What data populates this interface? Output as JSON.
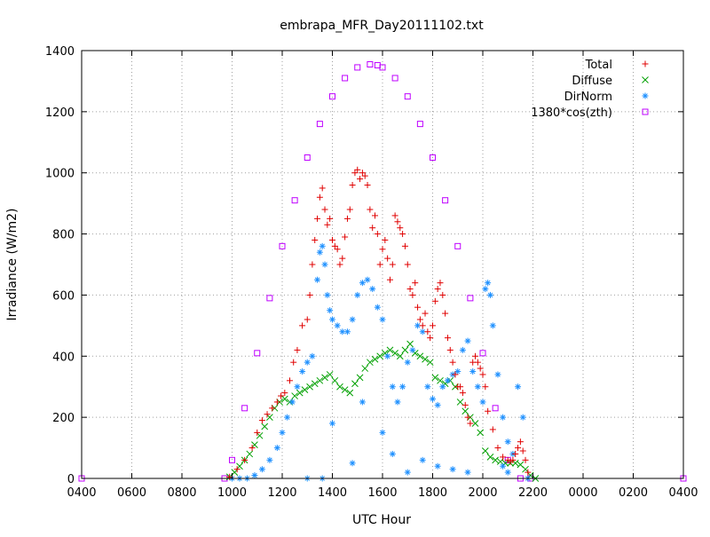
{
  "chart_data": {
    "type": "scatter",
    "title": "embrapa_MFR_Day20111102.txt",
    "xlabel": "UTC Hour",
    "ylabel": "Irradiance (W/m2)",
    "xlim": [
      4,
      28
    ],
    "ylim": [
      0,
      1400
    ],
    "grid": true,
    "legend_position": "top-right",
    "x_ticks": [
      {
        "value": 4,
        "label": "0400"
      },
      {
        "value": 6,
        "label": "0600"
      },
      {
        "value": 8,
        "label": "0800"
      },
      {
        "value": 10,
        "label": "1000"
      },
      {
        "value": 12,
        "label": "1200"
      },
      {
        "value": 14,
        "label": "1400"
      },
      {
        "value": 16,
        "label": "1600"
      },
      {
        "value": 18,
        "label": "1800"
      },
      {
        "value": 20,
        "label": "2000"
      },
      {
        "value": 22,
        "label": "2200"
      },
      {
        "value": 24,
        "label": "0000"
      },
      {
        "value": 26,
        "label": "0200"
      },
      {
        "value": 28,
        "label": "0400"
      }
    ],
    "y_ticks": [
      {
        "value": 0,
        "label": "0"
      },
      {
        "value": 200,
        "label": "200"
      },
      {
        "value": 400,
        "label": "400"
      },
      {
        "value": 600,
        "label": "600"
      },
      {
        "value": 800,
        "label": "800"
      },
      {
        "value": 1000,
        "label": "1000"
      },
      {
        "value": 1200,
        "label": "1200"
      },
      {
        "value": 1400,
        "label": "1400"
      }
    ],
    "series": [
      {
        "name": "Total",
        "marker": "plus",
        "color": "#e00000",
        "x": [
          9.9,
          10.2,
          10.5,
          10.8,
          11.0,
          11.2,
          11.4,
          11.6,
          11.8,
          11.95,
          12.1,
          12.3,
          12.45,
          12.6,
          12.8,
          13.0,
          13.1,
          13.2,
          13.3,
          13.4,
          13.5,
          13.6,
          13.7,
          13.8,
          13.9,
          14.0,
          14.1,
          14.2,
          14.3,
          14.4,
          14.5,
          14.6,
          14.7,
          14.8,
          14.9,
          15.0,
          15.1,
          15.2,
          15.3,
          15.4,
          15.5,
          15.6,
          15.7,
          15.8,
          15.9,
          16.0,
          16.1,
          16.2,
          16.3,
          16.4,
          16.5,
          16.6,
          16.7,
          16.8,
          16.9,
          17.0,
          17.1,
          17.2,
          17.3,
          17.4,
          17.5,
          17.6,
          17.7,
          17.8,
          17.9,
          18.0,
          18.1,
          18.2,
          18.3,
          18.4,
          18.5,
          18.6,
          18.7,
          18.8,
          18.9,
          19.0,
          19.1,
          19.2,
          19.3,
          19.4,
          19.5,
          19.6,
          19.7,
          19.8,
          19.9,
          20.0,
          20.1,
          20.2,
          20.4,
          20.6,
          20.8,
          21.0,
          21.1,
          21.2,
          21.3,
          21.4,
          21.5,
          21.6,
          21.7,
          21.8
        ],
        "y": [
          5,
          30,
          60,
          100,
          150,
          190,
          210,
          230,
          250,
          270,
          280,
          320,
          380,
          420,
          500,
          520,
          600,
          700,
          780,
          850,
          920,
          950,
          880,
          830,
          850,
          780,
          760,
          750,
          700,
          720,
          790,
          850,
          880,
          960,
          1000,
          1010,
          980,
          1000,
          990,
          960,
          880,
          820,
          860,
          800,
          700,
          750,
          780,
          720,
          650,
          700,
          860,
          840,
          820,
          800,
          760,
          700,
          620,
          600,
          640,
          560,
          520,
          500,
          540,
          480,
          460,
          500,
          580,
          620,
          640,
          600,
          540,
          460,
          420,
          380,
          340,
          300,
          300,
          280,
          240,
          200,
          180,
          380,
          400,
          380,
          360,
          340,
          300,
          220,
          160,
          100,
          70,
          60,
          55,
          60,
          80,
          100,
          120,
          90,
          60,
          20
        ]
      },
      {
        "name": "Diffuse",
        "marker": "cross",
        "color": "#00a000",
        "x": [
          9.9,
          10.1,
          10.3,
          10.5,
          10.7,
          10.9,
          11.1,
          11.3,
          11.5,
          11.7,
          11.9,
          12.1,
          12.3,
          12.5,
          12.7,
          12.9,
          13.1,
          13.3,
          13.5,
          13.7,
          13.9,
          14.1,
          14.3,
          14.5,
          14.7,
          14.9,
          15.1,
          15.3,
          15.5,
          15.7,
          15.9,
          16.1,
          16.3,
          16.5,
          16.7,
          16.9,
          17.1,
          17.3,
          17.5,
          17.7,
          17.9,
          18.1,
          18.3,
          18.5,
          18.7,
          18.9,
          19.1,
          19.3,
          19.5,
          19.7,
          19.9,
          20.1,
          20.3,
          20.5,
          20.7,
          20.9,
          21.1,
          21.3,
          21.5,
          21.7,
          21.9,
          22.1
        ],
        "y": [
          5,
          20,
          40,
          60,
          80,
          110,
          140,
          170,
          200,
          230,
          250,
          260,
          250,
          270,
          280,
          290,
          300,
          310,
          320,
          330,
          340,
          320,
          300,
          290,
          280,
          310,
          330,
          360,
          380,
          390,
          400,
          410,
          420,
          410,
          400,
          420,
          440,
          410,
          400,
          390,
          380,
          330,
          320,
          310,
          320,
          300,
          250,
          220,
          200,
          180,
          150,
          90,
          70,
          60,
          55,
          50,
          50,
          50,
          45,
          30,
          10,
          0
        ]
      },
      {
        "name": "DirNorm",
        "marker": "star",
        "color": "#1e90ff",
        "x": [
          10.0,
          10.3,
          10.6,
          10.9,
          11.2,
          11.5,
          11.8,
          12.0,
          12.2,
          12.4,
          12.6,
          12.8,
          13.0,
          13.2,
          13.4,
          13.5,
          13.6,
          13.7,
          13.8,
          13.9,
          14.0,
          14.2,
          14.4,
          14.6,
          14.8,
          15.0,
          15.2,
          15.4,
          15.6,
          15.8,
          16.0,
          16.2,
          16.4,
          16.6,
          16.8,
          17.0,
          17.2,
          17.4,
          17.6,
          17.8,
          18.0,
          18.2,
          18.4,
          18.6,
          18.8,
          19.0,
          19.2,
          19.4,
          19.6,
          19.8,
          20.0,
          20.1,
          20.2,
          20.3,
          20.4,
          20.6,
          20.8,
          21.0,
          21.2,
          21.4,
          21.6,
          21.8,
          13.0,
          13.6,
          14.0,
          14.8,
          15.2,
          16.0,
          16.4,
          17.0,
          17.6,
          18.2,
          18.8,
          19.4,
          20.8,
          21.0
        ],
        "y": [
          0,
          0,
          0,
          10,
          30,
          60,
          100,
          150,
          200,
          250,
          300,
          350,
          380,
          400,
          650,
          740,
          760,
          700,
          600,
          550,
          520,
          500,
          480,
          480,
          520,
          600,
          640,
          650,
          620,
          560,
          520,
          400,
          300,
          250,
          300,
          380,
          420,
          500,
          480,
          300,
          260,
          240,
          300,
          320,
          340,
          350,
          420,
          450,
          350,
          300,
          250,
          620,
          640,
          600,
          500,
          340,
          200,
          120,
          80,
          300,
          200,
          0,
          0,
          0,
          180,
          50,
          250,
          150,
          80,
          20,
          60,
          40,
          30,
          20,
          40,
          20
        ]
      },
      {
        "name": "1380*cos(zth)",
        "marker": "square",
        "color": "#bf00ff",
        "x": [
          4.0,
          9.7,
          10.0,
          10.5,
          11.0,
          11.5,
          12.0,
          12.5,
          13.0,
          13.5,
          14.0,
          14.5,
          15.0,
          15.5,
          15.8,
          16.0,
          16.5,
          17.0,
          17.5,
          18.0,
          18.5,
          19.0,
          19.5,
          20.0,
          20.5,
          21.0,
          21.5,
          21.9,
          28.0
        ],
        "y": [
          0,
          0,
          60,
          230,
          410,
          590,
          760,
          910,
          1050,
          1160,
          1250,
          1310,
          1345,
          1355,
          1352,
          1345,
          1310,
          1250,
          1160,
          1050,
          910,
          760,
          590,
          410,
          230,
          60,
          0,
          0,
          0
        ]
      }
    ]
  }
}
